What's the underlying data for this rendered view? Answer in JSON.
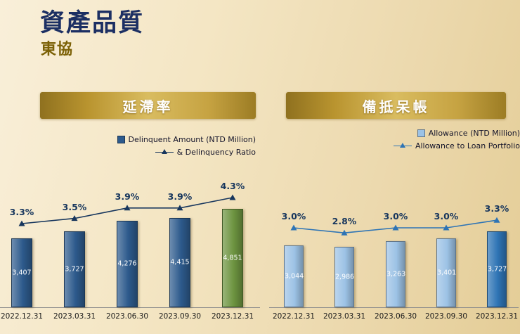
{
  "page": {
    "title": "資產品質",
    "subtitle": "東協"
  },
  "chart_data": [
    {
      "type": "bar",
      "title": "延滯率",
      "categories": [
        "2022.12.31",
        "2023.03.31",
        "2023.06.30",
        "2023.09.30",
        "2023.12.31"
      ],
      "series": [
        {
          "name": "Delinquent Amount (NTD Million)",
          "type": "bar",
          "values": [
            3407,
            3727,
            4276,
            4415,
            4851
          ],
          "labels": [
            "3,407",
            "3,727",
            "4,276",
            "4,415",
            "4,851"
          ],
          "colors": [
            "#2d5a8c",
            "#2d5a8c",
            "#2d5a8c",
            "#2d5a8c",
            "#6d9440"
          ]
        },
        {
          "name": "& Delinquency Ratio",
          "type": "line",
          "values": [
            3.3,
            3.5,
            3.9,
            3.9,
            4.3
          ],
          "labels": [
            "3.3%",
            "3.5%",
            "3.9%",
            "3.9%",
            "4.3%"
          ],
          "unit": "%",
          "color": "#17365d"
        }
      ],
      "ylim": [
        0,
        5000
      ],
      "ratio_ylim": [
        2.5,
        4.5
      ],
      "grid": false,
      "legend_position": "top-right"
    },
    {
      "type": "bar",
      "title": "備抵呆帳",
      "categories": [
        "2022.12.31",
        "2023.03.31",
        "2023.06.30",
        "2023.09.30",
        "2023.12.31"
      ],
      "series": [
        {
          "name": "Allowance (NTD Million)",
          "type": "bar",
          "values": [
            3044,
            2986,
            3263,
            3401,
            3727
          ],
          "labels": [
            "3,044",
            "2,986",
            "3,263",
            "3,401",
            "3,727"
          ],
          "colors": [
            "#9cc2e5",
            "#9cc2e5",
            "#9cc2e5",
            "#9cc2e5",
            "#2e74b5"
          ]
        },
        {
          "name": "Allowance to Loan Portfolio",
          "type": "line",
          "values": [
            3.0,
            2.8,
            3.0,
            3.0,
            3.3
          ],
          "labels": [
            "3.0%",
            "2.8%",
            "3.0%",
            "3.0%",
            "3.3%"
          ],
          "unit": "%",
          "color": "#2e74b5"
        }
      ],
      "ylim": [
        0,
        5000
      ],
      "ratio_ylim": [
        2.5,
        3.5
      ],
      "grid": false,
      "legend_position": "top-right"
    }
  ]
}
